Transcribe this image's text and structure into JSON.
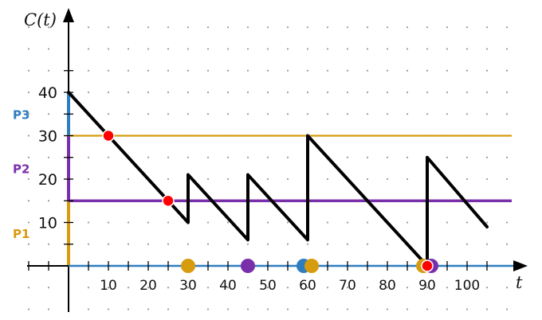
{
  "chart_data": {
    "type": "line",
    "ylabel": "C(t)",
    "xlabel": "t",
    "xlim": [
      -10,
      112
    ],
    "ylim": [
      -10,
      58
    ],
    "x_ticks": [
      10,
      20,
      30,
      40,
      50,
      60,
      70,
      80,
      90,
      100
    ],
    "y_ticks": [
      10,
      20,
      30,
      40
    ],
    "grid": "dotted",
    "series": [
      {
        "color": "#000000",
        "points": [
          [
            0,
            40
          ],
          [
            30,
            10
          ],
          [
            30,
            21
          ],
          [
            45,
            6
          ],
          [
            45,
            21
          ],
          [
            60,
            6
          ],
          [
            60,
            30
          ],
          [
            90,
            0
          ],
          [
            90,
            25
          ],
          [
            105,
            9
          ]
        ]
      }
    ],
    "reference_lines": [
      {
        "y": 30,
        "color": "#D79B0F"
      },
      {
        "y": 15,
        "color": "#7A2FAA"
      }
    ],
    "y_bands": [
      {
        "label": "P3",
        "from": 30,
        "to": 40,
        "color": "#2E7DC0"
      },
      {
        "label": "P2",
        "from": 15,
        "to": 30,
        "color": "#7A2FAA"
      },
      {
        "label": "P1",
        "from": 0,
        "to": 15,
        "color": "#D79B0F"
      }
    ],
    "intersection_markers": [
      {
        "x": 10,
        "y": 30
      },
      {
        "x": 25,
        "y": 15
      },
      {
        "x": 90,
        "y": 0
      }
    ],
    "axis_markers": [
      {
        "x": 30,
        "color": "#D79B0F"
      },
      {
        "x": 45,
        "color": "#7A2FAA"
      },
      {
        "x": 59,
        "color": "#2E7DC0"
      },
      {
        "x": 61,
        "color": "#D79B0F"
      },
      {
        "x": 89,
        "color": "#D79B0F"
      },
      {
        "x": 91,
        "color": "#7A2FAA"
      }
    ],
    "colors": {
      "line": "#000000",
      "axis": "#000000",
      "x_axis_line": "#2E7DC0",
      "intersection": "#FF0000",
      "grid_dot": "#9A9A9A"
    }
  }
}
